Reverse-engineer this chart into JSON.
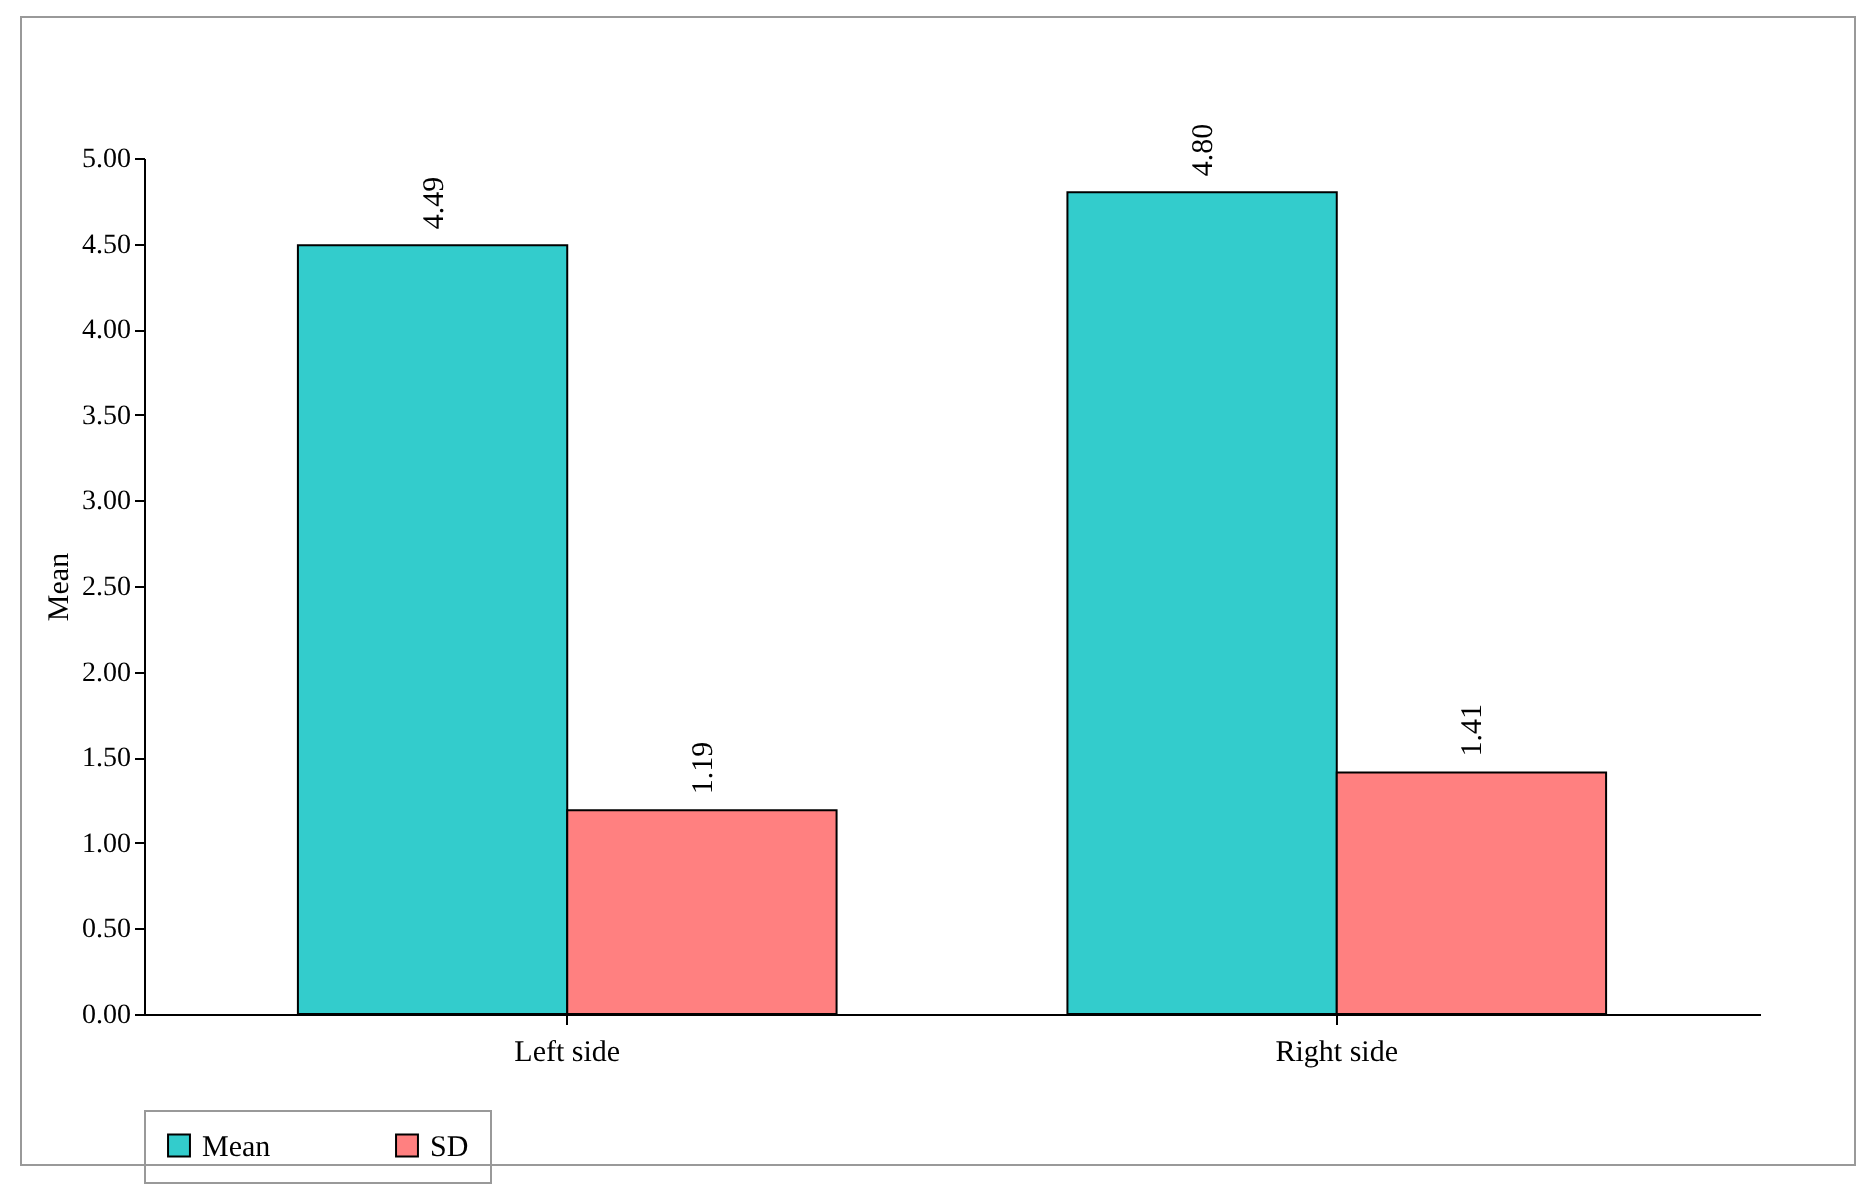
{
  "chart_data": {
    "type": "bar",
    "ylabel": "Mean",
    "categories": [
      "Left side",
      "Right side"
    ],
    "series": [
      {
        "name": "Mean",
        "color": "#33cccc",
        "values": [
          4.49,
          4.8
        ],
        "value_labels": [
          "4.49",
          "4.80"
        ]
      },
      {
        "name": "SD",
        "color": "#ff8080",
        "values": [
          1.19,
          1.41
        ],
        "value_labels": [
          "1.19",
          "1.41"
        ]
      }
    ],
    "ylim": [
      0,
      5
    ],
    "yticks": [
      {
        "value": 0,
        "label": "0.00"
      },
      {
        "value": 0.5,
        "label": "0.50"
      },
      {
        "value": 1,
        "label": "1.00"
      },
      {
        "value": 1.5,
        "label": "1.50"
      },
      {
        "value": 2,
        "label": "2.00"
      },
      {
        "value": 2.5,
        "label": "2.50"
      },
      {
        "value": 3,
        "label": "3.00"
      },
      {
        "value": 3.5,
        "label": "3.50"
      },
      {
        "value": 4,
        "label": "4.00"
      },
      {
        "value": 4.5,
        "label": "4.50"
      },
      {
        "value": 5,
        "label": "5.00"
      }
    ],
    "grid": false,
    "legend": "bottom"
  }
}
